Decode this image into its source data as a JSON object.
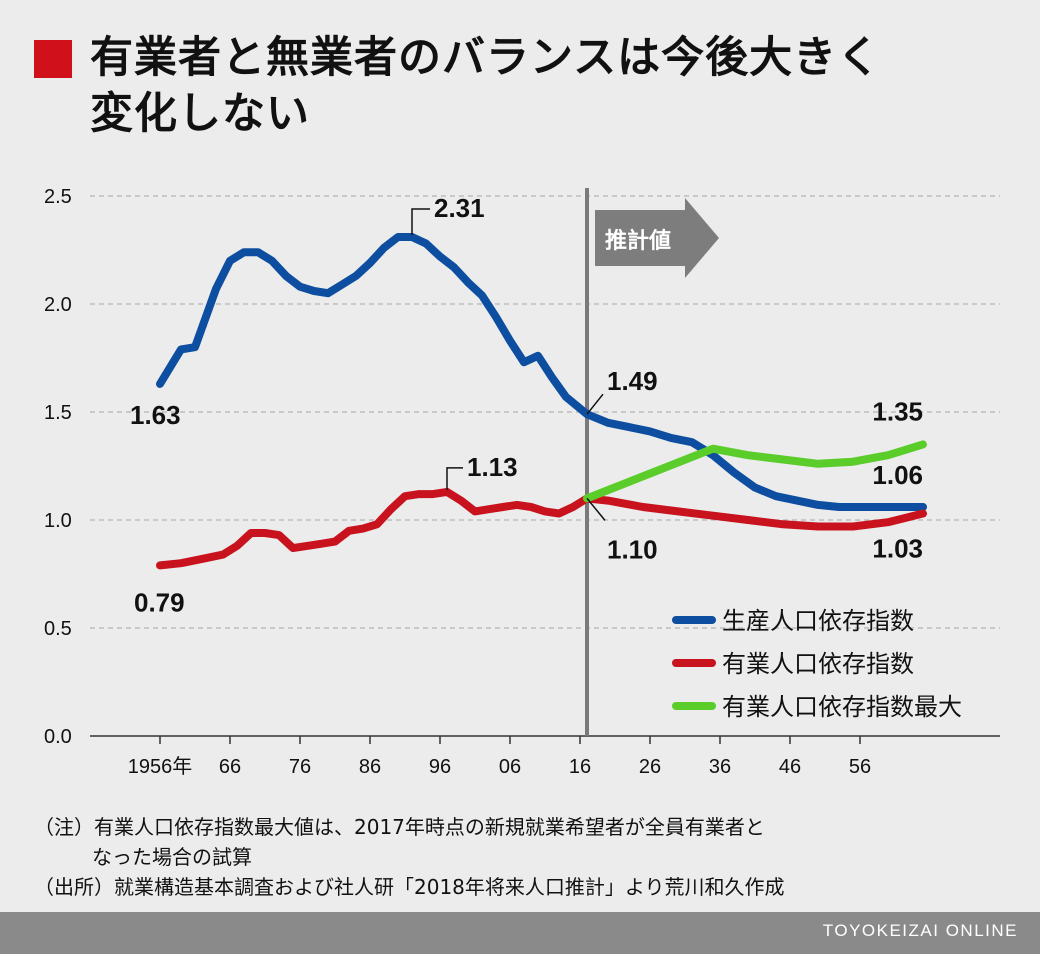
{
  "header": {
    "title_line1": "有業者と無業者のバランスは今後大きく",
    "title_line2": "変化しない",
    "accent_color": "#d0111b"
  },
  "chart_data": {
    "type": "line",
    "ylim": [
      0,
      2.5
    ],
    "yticks": [
      "0.0",
      "0.5",
      "1.0",
      "1.5",
      "2.0",
      "2.5"
    ],
    "ytick_values": [
      0,
      0.5,
      1.0,
      1.5,
      2.0,
      2.5
    ],
    "xlim": [
      1946,
      2076
    ],
    "xticks": [
      "1956年",
      "66",
      "76",
      "86",
      "96",
      "06",
      "16",
      "26",
      "36",
      "46",
      "56"
    ],
    "xtick_years": [
      1956,
      1966,
      1976,
      1986,
      1996,
      2006,
      2016,
      2026,
      2036,
      2046,
      2056
    ],
    "grid": "horizontal-dashed",
    "projection_start_year": 2017,
    "projection_label": "推計値",
    "legend_position": "bottom-right",
    "series": [
      {
        "name": "生産人口依存指数",
        "color": "#0d4ea0",
        "x": [
          1956,
          1959,
          1961,
          1964,
          1966,
          1968,
          1970,
          1972,
          1974,
          1976,
          1978,
          1980,
          1982,
          1984,
          1986,
          1988,
          1990,
          1992,
          1994,
          1996,
          1998,
          2000,
          2002,
          2004,
          2006,
          2008,
          2010,
          2012,
          2014,
          2017,
          2020,
          2023,
          2026,
          2029,
          2032,
          2035,
          2038,
          2041,
          2044,
          2047,
          2050,
          2053,
          2056,
          2059,
          2062,
          2065
        ],
        "y": [
          1.63,
          1.79,
          1.8,
          2.07,
          2.2,
          2.24,
          2.24,
          2.2,
          2.13,
          2.08,
          2.06,
          2.05,
          2.09,
          2.13,
          2.19,
          2.26,
          2.31,
          2.31,
          2.28,
          2.22,
          2.17,
          2.1,
          2.04,
          1.94,
          1.83,
          1.73,
          1.76,
          1.66,
          1.57,
          1.49,
          1.45,
          1.43,
          1.41,
          1.38,
          1.36,
          1.3,
          1.22,
          1.15,
          1.11,
          1.09,
          1.07,
          1.06,
          1.06,
          1.06,
          1.06,
          1.06
        ]
      },
      {
        "name": "有業人口依存指数",
        "color": "#c8131e",
        "x": [
          1956,
          1959,
          1962,
          1965,
          1967,
          1969,
          1971,
          1973,
          1975,
          1977,
          1979,
          1981,
          1983,
          1985,
          1987,
          1989,
          1991,
          1993,
          1995,
          1997,
          1999,
          2001,
          2003,
          2005,
          2007,
          2009,
          2011,
          2013,
          2015,
          2017,
          2020,
          2025,
          2030,
          2035,
          2040,
          2045,
          2050,
          2055,
          2060,
          2065
        ],
        "y": [
          0.79,
          0.8,
          0.82,
          0.84,
          0.88,
          0.94,
          0.94,
          0.93,
          0.87,
          0.88,
          0.89,
          0.9,
          0.95,
          0.96,
          0.98,
          1.05,
          1.11,
          1.12,
          1.12,
          1.13,
          1.09,
          1.04,
          1.05,
          1.06,
          1.07,
          1.06,
          1.04,
          1.03,
          1.06,
          1.1,
          1.09,
          1.06,
          1.04,
          1.02,
          1.0,
          0.98,
          0.97,
          0.97,
          0.99,
          1.03
        ]
      },
      {
        "name": "有業人口依存指数最大",
        "color": "#5bcd2a",
        "x": [
          2017,
          2035,
          2040,
          2045,
          2050,
          2055,
          2060,
          2065
        ],
        "y": [
          1.1,
          1.33,
          1.3,
          1.28,
          1.26,
          1.27,
          1.3,
          1.35
        ]
      }
    ],
    "annotations": [
      {
        "text": "1.63",
        "x": 1956,
        "y": 1.63
      },
      {
        "text": "2.31",
        "x": 1992,
        "y": 2.31
      },
      {
        "text": "1.49",
        "x": 2017,
        "y": 1.49
      },
      {
        "text": "1.35",
        "x": 2065,
        "y": 1.35
      },
      {
        "text": "1.06",
        "x": 2065,
        "y": 1.06
      },
      {
        "text": "1.03",
        "x": 2065,
        "y": 1.03
      },
      {
        "text": "1.10",
        "x": 2017,
        "y": 1.1
      },
      {
        "text": "1.13",
        "x": 1997,
        "y": 1.13
      },
      {
        "text": "0.79",
        "x": 1956,
        "y": 0.79
      }
    ]
  },
  "notes": {
    "note1_line1": "（注）有業人口依存指数最大値は、2017年時点の新規就業希望者が全員有業者と",
    "note1_line2": "なった場合の試算",
    "source": "（出所）就業構造基本調査および社人研「2018年将来人口推計」より荒川和久作成"
  },
  "footer": {
    "credit": "TOYOKEIZAI ONLINE"
  }
}
